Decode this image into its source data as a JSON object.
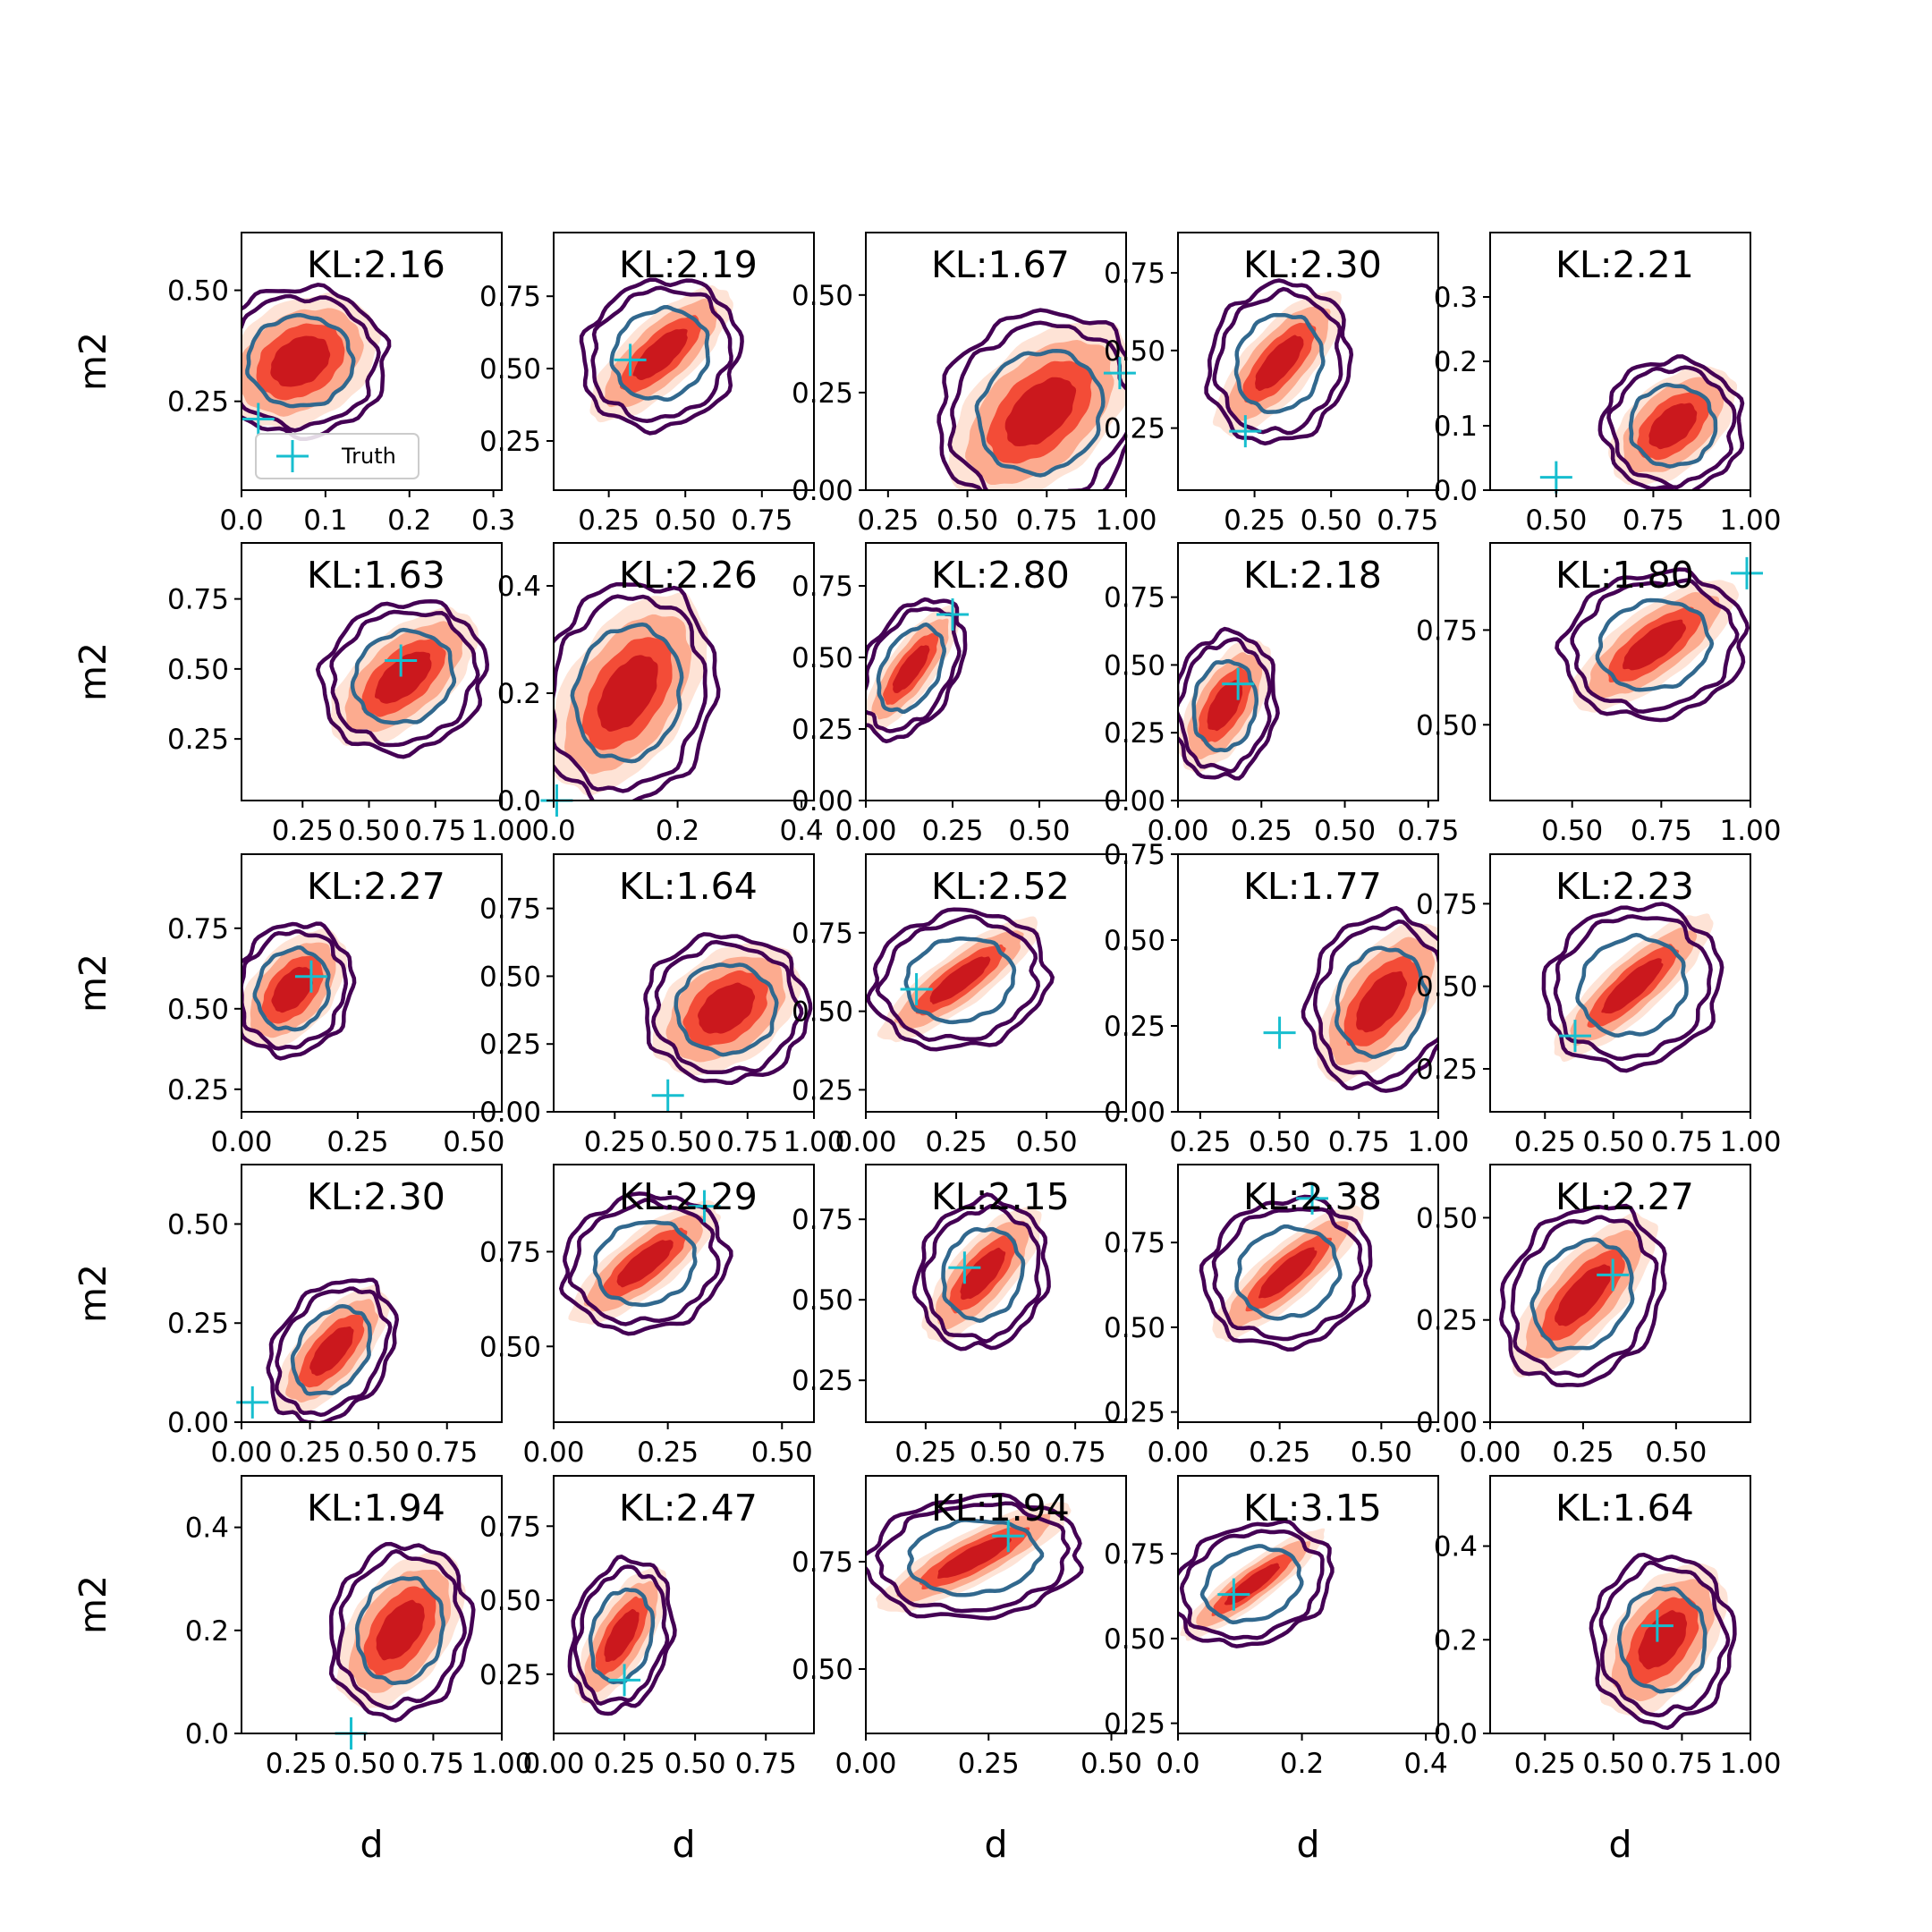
{
  "figure": {
    "xlabel": "d",
    "ylabel": "m2",
    "legend_label": "Truth",
    "legend_placement": "lower-left of first panel",
    "colors": {
      "fill_levels": [
        "#fee3d6",
        "#fcab8f",
        "#f34c37",
        "#cb181d"
      ],
      "outer_contour": "#440154",
      "inner_contour": "#31688e",
      "truth_marker": "#17becf",
      "axis": "#000000"
    }
  },
  "chart_data": [
    {
      "type": "contour",
      "kl_label": "KL:2.16",
      "xlim": [
        0,
        0.31
      ],
      "ylim": [
        0.05,
        0.63
      ],
      "xticks": [
        0,
        0.1,
        0.2,
        0.3
      ],
      "xtick_labels": [
        "0.0",
        "0.1",
        "0.2",
        "0.3"
      ],
      "yticks": [
        0.25,
        0.5
      ],
      "ytick_labels": [
        "0.25",
        "0.50"
      ],
      "center": [
        0.07,
        0.34
      ],
      "spread": [
        0.08,
        0.13
      ],
      "fill_rho": 0.3,
      "contour_rho": 0,
      "truth": [
        0.02,
        0.21
      ],
      "legend": true
    },
    {
      "type": "contour",
      "kl_label": "KL:2.19",
      "xlim": [
        0.07,
        0.92
      ],
      "ylim": [
        0.08,
        0.97
      ],
      "xticks": [
        0.25,
        0.5,
        0.75
      ],
      "xtick_labels": [
        "0.25",
        "0.50",
        "0.75"
      ],
      "yticks": [
        0.25,
        0.5,
        0.75
      ],
      "ytick_labels": [
        "0.25",
        "0.50",
        "0.75"
      ],
      "center": [
        0.42,
        0.55
      ],
      "spread": [
        0.2,
        0.2
      ],
      "fill_rho": 0.75,
      "contour_rho": 0.1,
      "truth": [
        0.32,
        0.53
      ]
    },
    {
      "type": "contour",
      "kl_label": "KL:1.67",
      "xlim": [
        0.18,
        1.0
      ],
      "ylim": [
        0,
        0.66
      ],
      "xticks": [
        0.25,
        0.5,
        0.75,
        1.0
      ],
      "xtick_labels": [
        "0.25",
        "0.50",
        "0.75",
        "1.00"
      ],
      "yticks": [
        0,
        0.25,
        0.5
      ],
      "ytick_labels": [
        "0.00",
        "0.25",
        "0.50"
      ],
      "center": [
        0.73,
        0.2
      ],
      "spread": [
        0.25,
        0.2
      ],
      "fill_rho": 0.5,
      "contour_rho": 0.1,
      "truth": [
        0.98,
        0.3
      ]
    },
    {
      "type": "contour",
      "kl_label": "KL:2.30",
      "xlim": [
        0,
        0.85
      ],
      "ylim": [
        0.05,
        0.88
      ],
      "xticks": [
        0.25,
        0.5,
        0.75
      ],
      "xtick_labels": [
        "0.25",
        "0.50",
        "0.75"
      ],
      "yticks": [
        0.25,
        0.5,
        0.75
      ],
      "ytick_labels": [
        "0.25",
        "0.50",
        "0.75"
      ],
      "center": [
        0.33,
        0.46
      ],
      "spread": [
        0.18,
        0.2
      ],
      "fill_rho": 0.75,
      "contour_rho": 0.1,
      "truth": [
        0.22,
        0.24
      ]
    },
    {
      "type": "contour",
      "kl_label": "KL:2.21",
      "xlim": [
        0.33,
        1.0
      ],
      "ylim": [
        0,
        0.4
      ],
      "xticks": [
        0.5,
        0.75,
        1.0
      ],
      "xtick_labels": [
        "0.50",
        "0.75",
        "1.00"
      ],
      "yticks": [
        0,
        0.1,
        0.2,
        0.3
      ],
      "ytick_labels": [
        "0.0",
        "0.1",
        "0.2",
        "0.3"
      ],
      "center": [
        0.8,
        0.1
      ],
      "spread": [
        0.14,
        0.08
      ],
      "fill_rho": 0.5,
      "contour_rho": 0,
      "truth": [
        0.5,
        0.02
      ]
    },
    {
      "type": "contour",
      "kl_label": "KL:1.63",
      "xlim": [
        0.02,
        1.0
      ],
      "ylim": [
        0.03,
        0.95
      ],
      "xticks": [
        0.25,
        0.5,
        0.75,
        1.0
      ],
      "xtick_labels": [
        "0.25",
        "0.50",
        "0.75",
        "1.00"
      ],
      "yticks": [
        0.25,
        0.5,
        0.75
      ],
      "ytick_labels": [
        "0.25",
        "0.50",
        "0.75"
      ],
      "center": [
        0.63,
        0.47
      ],
      "spread": [
        0.24,
        0.21
      ],
      "fill_rho": 0.6,
      "contour_rho": 0.1,
      "truth": [
        0.62,
        0.53
      ]
    },
    {
      "type": "contour",
      "kl_label": "KL:2.26",
      "xlim": [
        0,
        0.42
      ],
      "ylim": [
        0,
        0.48
      ],
      "xticks": [
        0,
        0.2,
        0.4
      ],
      "xtick_labels": [
        "0.0",
        "0.2",
        "0.4"
      ],
      "yticks": [
        0,
        0.2,
        0.4
      ],
      "ytick_labels": [
        "0.0",
        "0.2",
        "0.4"
      ],
      "center": [
        0.12,
        0.2
      ],
      "spread": [
        0.11,
        0.16
      ],
      "fill_rho": 0.5,
      "contour_rho": 0.1,
      "truth": [
        0.005,
        0.0
      ]
    },
    {
      "type": "contour",
      "kl_label": "KL:2.80",
      "xlim": [
        0,
        0.75
      ],
      "ylim": [
        0,
        0.9
      ],
      "xticks": [
        0,
        0.25,
        0.5
      ],
      "xtick_labels": [
        "0.00",
        "0.25",
        "0.50"
      ],
      "yticks": [
        0,
        0.25,
        0.5,
        0.75
      ],
      "ytick_labels": [
        "0.00",
        "0.25",
        "0.50",
        "0.75"
      ],
      "center": [
        0.13,
        0.46
      ],
      "spread": [
        0.12,
        0.19
      ],
      "fill_rho": 0.8,
      "contour_rho": 0.4,
      "truth": [
        0.25,
        0.65
      ]
    },
    {
      "type": "contour",
      "kl_label": "KL:2.18",
      "xlim": [
        0,
        0.78
      ],
      "ylim": [
        0,
        0.95
      ],
      "xticks": [
        0,
        0.25,
        0.5,
        0.75
      ],
      "xtick_labels": [
        "0.00",
        "0.25",
        "0.50",
        "0.75"
      ],
      "yticks": [
        0,
        0.25,
        0.5,
        0.75
      ],
      "ytick_labels": [
        "0.00",
        "0.25",
        "0.50",
        "0.75"
      ],
      "center": [
        0.14,
        0.35
      ],
      "spread": [
        0.12,
        0.21
      ],
      "fill_rho": 0.6,
      "contour_rho": 0.1,
      "truth": [
        0.18,
        0.43
      ]
    },
    {
      "type": "contour",
      "kl_label": "KL:1.80",
      "xlim": [
        0.27,
        1.0
      ],
      "ylim": [
        0.3,
        0.98
      ],
      "xticks": [
        0.5,
        0.75,
        1.0
      ],
      "xtick_labels": [
        "0.50",
        "0.75",
        "1.00"
      ],
      "yticks": [
        0.5,
        0.75
      ],
      "ytick_labels": [
        "0.50",
        "0.75"
      ],
      "center": [
        0.73,
        0.71
      ],
      "spread": [
        0.2,
        0.15
      ],
      "fill_rho": 0.75,
      "contour_rho": 0.1,
      "truth": [
        0.99,
        0.9
      ]
    },
    {
      "type": "contour",
      "kl_label": "KL:2.27",
      "xlim": [
        0,
        0.56
      ],
      "ylim": [
        0.18,
        0.98
      ],
      "xticks": [
        0,
        0.25,
        0.5
      ],
      "xtick_labels": [
        "0.00",
        "0.25",
        "0.50"
      ],
      "yticks": [
        0.25,
        0.5,
        0.75
      ],
      "ytick_labels": [
        "0.25",
        "0.50",
        "0.75"
      ],
      "center": [
        0.11,
        0.56
      ],
      "spread": [
        0.1,
        0.16
      ],
      "fill_rho": 0.5,
      "contour_rho": 0.1,
      "truth": [
        0.15,
        0.6
      ]
    },
    {
      "type": "contour",
      "kl_label": "KL:1.64",
      "xlim": [
        0.02,
        1.0
      ],
      "ylim": [
        0,
        0.95
      ],
      "xticks": [
        0.25,
        0.5,
        0.75,
        1.0
      ],
      "xtick_labels": [
        "0.25",
        "0.50",
        "0.75",
        "1.00"
      ],
      "yticks": [
        0,
        0.25,
        0.5,
        0.75
      ],
      "ytick_labels": [
        "0.00",
        "0.25",
        "0.50",
        "0.75"
      ],
      "center": [
        0.67,
        0.38
      ],
      "spread": [
        0.24,
        0.21
      ],
      "fill_rho": 0.4,
      "contour_rho": 0,
      "truth": [
        0.45,
        0.06
      ]
    },
    {
      "type": "contour",
      "kl_label": "KL:2.52",
      "xlim": [
        0,
        0.72
      ],
      "ylim": [
        0.18,
        1.0
      ],
      "xticks": [
        0,
        0.25,
        0.5
      ],
      "xtick_labels": [
        "0.00",
        "0.25",
        "0.50"
      ],
      "yticks": [
        0.25,
        0.5,
        0.75
      ],
      "ytick_labels": [
        "0.25",
        "0.50",
        "0.75"
      ],
      "center": [
        0.26,
        0.6
      ],
      "spread": [
        0.19,
        0.17
      ],
      "fill_rho": 0.85,
      "contour_rho": 0.1,
      "truth": [
        0.14,
        0.57
      ]
    },
    {
      "type": "contour",
      "kl_label": "KL:1.77",
      "xlim": [
        0.18,
        1.0
      ],
      "ylim": [
        0,
        0.75
      ],
      "xticks": [
        0.25,
        0.5,
        0.75,
        1.0
      ],
      "xtick_labels": [
        "0.25",
        "0.50",
        "0.75",
        "1.00"
      ],
      "yticks": [
        0,
        0.25,
        0.5,
        0.75
      ],
      "ytick_labels": [
        "0.00",
        "0.25",
        "0.50",
        "0.75"
      ],
      "center": [
        0.82,
        0.32
      ],
      "spread": [
        0.18,
        0.2
      ],
      "fill_rho": 0.6,
      "contour_rho": 0.1,
      "truth": [
        0.5,
        0.23
      ]
    },
    {
      "type": "contour",
      "kl_label": "KL:2.23",
      "xlim": [
        0.05,
        1.0
      ],
      "ylim": [
        0.12,
        0.9
      ],
      "xticks": [
        0.25,
        0.5,
        0.75,
        1.0
      ],
      "xtick_labels": [
        "0.25",
        "0.50",
        "0.75",
        "1.00"
      ],
      "yticks": [
        0.25,
        0.5,
        0.75
      ],
      "ytick_labels": [
        "0.25",
        "0.50",
        "0.75"
      ],
      "center": [
        0.57,
        0.5
      ],
      "spread": [
        0.25,
        0.19
      ],
      "fill_rho": 0.85,
      "contour_rho": 0.1,
      "truth": [
        0.36,
        0.35
      ]
    },
    {
      "type": "contour",
      "kl_label": "KL:2.30",
      "xlim": [
        0,
        0.95
      ],
      "ylim": [
        0,
        0.65
      ],
      "xticks": [
        0,
        0.25,
        0.5,
        0.75
      ],
      "xtick_labels": [
        "0.00",
        "0.25",
        "0.50",
        "0.75"
      ],
      "yticks": [
        0,
        0.25,
        0.5
      ],
      "ytick_labels": [
        "0.00",
        "0.25",
        "0.50"
      ],
      "center": [
        0.33,
        0.18
      ],
      "spread": [
        0.18,
        0.14
      ],
      "fill_rho": 0.7,
      "contour_rho": 0.3,
      "truth": [
        0.04,
        0.05
      ]
    },
    {
      "type": "contour",
      "kl_label": "KL:2.29",
      "xlim": [
        0,
        0.57
      ],
      "ylim": [
        0.3,
        0.98
      ],
      "xticks": [
        0,
        0.25,
        0.5
      ],
      "xtick_labels": [
        "0.00",
        "0.25",
        "0.50"
      ],
      "yticks": [
        0.5,
        0.75
      ],
      "ytick_labels": [
        "0.50",
        "0.75"
      ],
      "center": [
        0.2,
        0.72
      ],
      "spread": [
        0.14,
        0.14
      ],
      "fill_rho": 0.8,
      "contour_rho": 0.1,
      "truth": [
        0.33,
        0.87
      ]
    },
    {
      "type": "contour",
      "kl_label": "KL:2.15",
      "xlim": [
        0.05,
        0.92
      ],
      "ylim": [
        0.12,
        0.92
      ],
      "xticks": [
        0.25,
        0.5,
        0.75
      ],
      "xtick_labels": [
        "0.25",
        "0.50",
        "0.75"
      ],
      "yticks": [
        0.25,
        0.5,
        0.75
      ],
      "ytick_labels": [
        "0.25",
        "0.50",
        "0.75"
      ],
      "center": [
        0.44,
        0.58
      ],
      "spread": [
        0.17,
        0.18
      ],
      "fill_rho": 0.75,
      "contour_rho": 0.1,
      "truth": [
        0.38,
        0.6
      ]
    },
    {
      "type": "contour",
      "kl_label": "KL:2.38",
      "xlim": [
        0,
        0.64
      ],
      "ylim": [
        0.22,
        0.98
      ],
      "xticks": [
        0,
        0.25,
        0.5
      ],
      "xtick_labels": [
        "0.00",
        "0.25",
        "0.50"
      ],
      "yticks": [
        0.25,
        0.5,
        0.75
      ],
      "ytick_labels": [
        "0.25",
        "0.50",
        "0.75"
      ],
      "center": [
        0.27,
        0.66
      ],
      "spread": [
        0.16,
        0.17
      ],
      "fill_rho": 0.85,
      "contour_rho": 0.1,
      "truth": [
        0.33,
        0.88
      ]
    },
    {
      "type": "contour",
      "kl_label": "KL:2.27",
      "xlim": [
        0,
        0.7
      ],
      "ylim": [
        0,
        0.63
      ],
      "xticks": [
        0,
        0.25,
        0.5
      ],
      "xtick_labels": [
        "0.00",
        "0.25",
        "0.50"
      ],
      "yticks": [
        0,
        0.25,
        0.5
      ],
      "ytick_labels": [
        "0.00",
        "0.25",
        "0.50"
      ],
      "center": [
        0.25,
        0.31
      ],
      "spread": [
        0.17,
        0.17
      ],
      "fill_rho": 0.75,
      "contour_rho": 0.2,
      "truth": [
        0.33,
        0.36
      ]
    },
    {
      "type": "contour",
      "kl_label": "KL:1.94",
      "xlim": [
        0.05,
        1.0
      ],
      "ylim": [
        0,
        0.5
      ],
      "xticks": [
        0.25,
        0.5,
        0.75,
        1.0
      ],
      "xtick_labels": [
        "0.25",
        "0.50",
        "0.75",
        "1.00"
      ],
      "yticks": [
        0,
        0.2,
        0.4
      ],
      "ytick_labels": [
        "0.0",
        "0.2",
        "0.4"
      ],
      "center": [
        0.63,
        0.2
      ],
      "spread": [
        0.2,
        0.13
      ],
      "fill_rho": 0.5,
      "contour_rho": 0.1,
      "truth": [
        0.45,
        0.0
      ]
    },
    {
      "type": "contour",
      "kl_label": "KL:2.47",
      "xlim": [
        0,
        0.92
      ],
      "ylim": [
        0.05,
        0.92
      ],
      "xticks": [
        0,
        0.25,
        0.5,
        0.75
      ],
      "xtick_labels": [
        "0.00",
        "0.25",
        "0.50",
        "0.75"
      ],
      "yticks": [
        0.25,
        0.5,
        0.75
      ],
      "ytick_labels": [
        "0.25",
        "0.50",
        "0.75"
      ],
      "center": [
        0.24,
        0.38
      ],
      "spread": [
        0.14,
        0.2
      ],
      "fill_rho": 0.7,
      "contour_rho": 0.2,
      "truth": [
        0.25,
        0.23
      ]
    },
    {
      "type": "contour",
      "kl_label": "KL:1.94",
      "xlim": [
        0,
        0.53
      ],
      "ylim": [
        0.35,
        0.95
      ],
      "xticks": [
        0,
        0.25,
        0.5
      ],
      "xtick_labels": [
        "0.00",
        "0.25",
        "0.50"
      ],
      "yticks": [
        0.5,
        0.75
      ],
      "ytick_labels": [
        "0.50",
        "0.75"
      ],
      "center": [
        0.22,
        0.76
      ],
      "spread": [
        0.17,
        0.11
      ],
      "fill_rho": 0.85,
      "contour_rho": 0.1,
      "truth": [
        0.29,
        0.81
      ]
    },
    {
      "type": "contour",
      "kl_label": "KL:3.15",
      "xlim": [
        0,
        0.42
      ],
      "ylim": [
        0.22,
        0.98
      ],
      "xticks": [
        0,
        0.2,
        0.4
      ],
      "xtick_labels": [
        "0.0",
        "0.2",
        "0.4"
      ],
      "yticks": [
        0.25,
        0.5,
        0.75
      ],
      "ytick_labels": [
        "0.25",
        "0.50",
        "0.75"
      ],
      "center": [
        0.12,
        0.66
      ],
      "spread": [
        0.1,
        0.14
      ],
      "fill_rho": 0.9,
      "contour_rho": 0.2,
      "truth": [
        0.09,
        0.63
      ]
    },
    {
      "type": "contour",
      "kl_label": "KL:1.64",
      "xlim": [
        0.05,
        1.0
      ],
      "ylim": [
        0,
        0.55
      ],
      "xticks": [
        0.25,
        0.5,
        0.75,
        1.0
      ],
      "xtick_labels": [
        "0.25",
        "0.50",
        "0.75",
        "1.00"
      ],
      "yticks": [
        0,
        0.2,
        0.4
      ],
      "ytick_labels": [
        "0.0",
        "0.2",
        "0.4"
      ],
      "center": [
        0.68,
        0.2
      ],
      "spread": [
        0.2,
        0.14
      ],
      "fill_rho": 0.5,
      "contour_rho": 0,
      "truth": [
        0.66,
        0.23
      ]
    }
  ]
}
